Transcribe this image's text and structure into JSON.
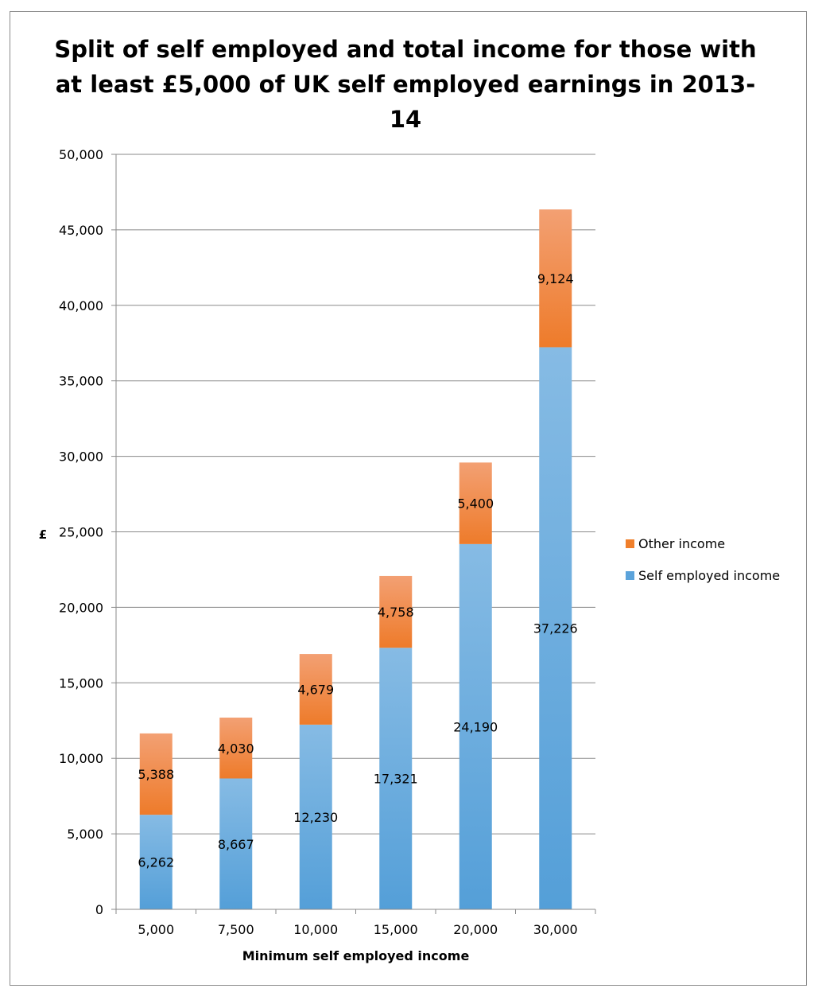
{
  "chart_data": {
    "type": "bar",
    "stacked": true,
    "title": "Split of self employed and total income for those with at least £5,000 of UK self employed earnings in 2013-14",
    "xlabel": "Minimum self employed income",
    "ylabel": "£",
    "categories": [
      "5,000",
      "7,500",
      "10,000",
      "15,000",
      "20,000",
      "30,000"
    ],
    "ylim": [
      0,
      50000
    ],
    "yticks": [
      0,
      5000,
      10000,
      15000,
      20000,
      25000,
      30000,
      35000,
      40000,
      45000,
      50000
    ],
    "ytick_labels": [
      "0",
      "5,000",
      "10,000",
      "15,000",
      "20,000",
      "25,000",
      "30,000",
      "35,000",
      "40,000",
      "45,000",
      "50,000"
    ],
    "grid": true,
    "legend_position": "right",
    "series": [
      {
        "name": "Self employed income",
        "color": "#5ba3db",
        "values": [
          6262,
          8667,
          12230,
          17321,
          24190,
          37226
        ],
        "labels": [
          "6,262",
          "8,667",
          "12,230",
          "17,321",
          "24,190",
          "37,226"
        ]
      },
      {
        "name": "Other income",
        "color": "#f07f2b",
        "values": [
          5388,
          4030,
          4679,
          4758,
          5400,
          9124
        ],
        "labels": [
          "5,388",
          "4,030",
          "4,679",
          "4,758",
          "5,400",
          "9,124"
        ]
      }
    ],
    "legend_order": [
      1,
      0
    ]
  }
}
